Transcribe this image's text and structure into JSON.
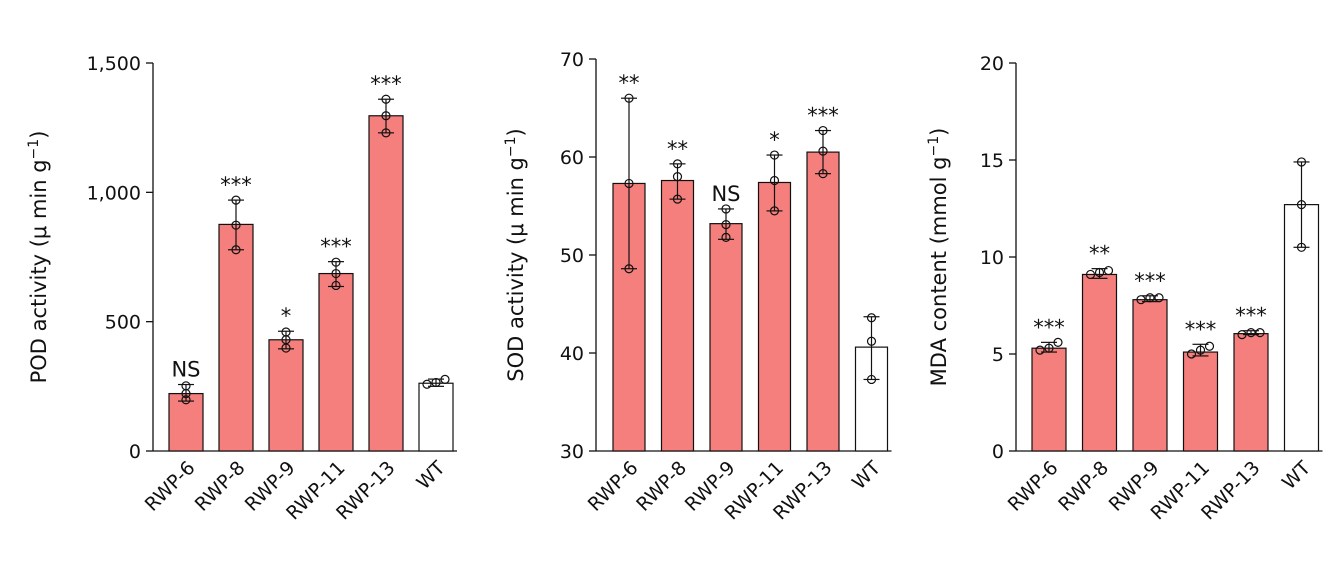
{
  "colors": {
    "treated": "#F47F7C",
    "control": "#FFFFFF",
    "stroke": "#111111"
  },
  "chart_data": [
    {
      "type": "bar",
      "ylabel": "POD activity (μ min g",
      "ylabel_sup": "−1",
      "ylabel_close": ")",
      "ylim": [
        0,
        1500
      ],
      "yticks": [
        0,
        500,
        1000,
        1500
      ],
      "ytick_labels": [
        "0",
        "500",
        "1,000",
        "1,500"
      ],
      "categories": [
        "RWP-6",
        "RWP-8",
        "RWP-9",
        "RWP-11",
        "RWP-13",
        "WT"
      ],
      "values": [
        222,
        876,
        430,
        686,
        1296,
        262
      ],
      "error_low": [
        193,
        778,
        395,
        636,
        1230,
        250
      ],
      "error_high": [
        257,
        970,
        463,
        732,
        1360,
        278
      ],
      "points": [
        [
          198,
          222,
          252
        ],
        [
          778,
          873,
          970
        ],
        [
          398,
          430,
          460
        ],
        [
          640,
          686,
          730
        ],
        [
          1230,
          1296,
          1360
        ],
        [
          258,
          265,
          277
        ]
      ],
      "significance": [
        "NS",
        "***",
        "*",
        "***",
        "***",
        ""
      ]
    },
    {
      "type": "bar",
      "ylabel": "SOD activity (μ min g",
      "ylabel_sup": "−1",
      "ylabel_close": ")",
      "ylim": [
        30,
        70
      ],
      "yticks": [
        30,
        40,
        50,
        60,
        70
      ],
      "ytick_labels": [
        "30",
        "40",
        "50",
        "60",
        "70"
      ],
      "categories": [
        "RWP-6",
        "RWP-8",
        "RWP-9",
        "RWP-11",
        "RWP-13",
        "WT"
      ],
      "values": [
        57.3,
        57.6,
        53.2,
        57.4,
        60.5,
        40.6
      ],
      "error_low": [
        48.6,
        55.7,
        51.6,
        54.5,
        58.3,
        37.3
      ],
      "error_high": [
        66.0,
        59.3,
        54.7,
        60.2,
        62.7,
        43.7
      ],
      "points": [
        [
          48.6,
          57.3,
          66.0
        ],
        [
          55.7,
          58.0,
          59.3
        ],
        [
          51.8,
          53.1,
          54.7
        ],
        [
          54.5,
          57.6,
          60.2
        ],
        [
          58.3,
          60.6,
          62.7
        ],
        [
          37.3,
          41.2,
          43.6
        ]
      ],
      "significance": [
        "**",
        "**",
        "NS",
        "*",
        "***",
        ""
      ]
    },
    {
      "type": "bar",
      "ylabel": "MDA content (mmol g",
      "ylabel_sup": "−1",
      "ylabel_close": ")",
      "ylim": [
        0,
        20
      ],
      "yticks": [
        0,
        5,
        10,
        15,
        20
      ],
      "ytick_labels": [
        "0",
        "5",
        "10",
        "15",
        "20"
      ],
      "categories": [
        "RWP-6",
        "RWP-8",
        "RWP-9",
        "RWP-11",
        "RWP-13",
        "WT"
      ],
      "values": [
        5.3,
        9.1,
        7.8,
        5.1,
        6.05,
        12.7
      ],
      "error_low": [
        5.1,
        8.9,
        7.7,
        4.9,
        6.0,
        10.5
      ],
      "error_high": [
        5.6,
        9.4,
        8.0,
        5.5,
        6.2,
        14.9
      ],
      "points": [
        [
          5.2,
          5.3,
          5.6
        ],
        [
          9.1,
          9.2,
          9.3
        ],
        [
          7.8,
          7.9,
          7.9
        ],
        [
          5.0,
          5.2,
          5.4
        ],
        [
          6.0,
          6.1,
          6.1
        ],
        [
          10.5,
          12.7,
          14.9
        ]
      ],
      "significance": [
        "***",
        "**",
        "***",
        "***",
        "***",
        ""
      ]
    }
  ]
}
